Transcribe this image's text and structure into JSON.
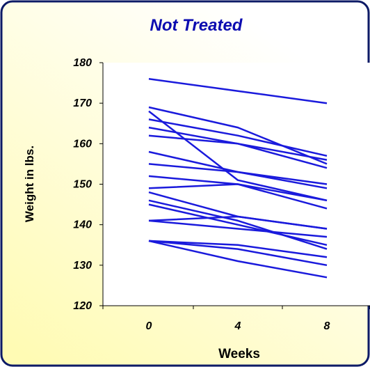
{
  "chart_data": {
    "type": "line",
    "title": "Not Treated",
    "xlabel": "Weeks",
    "ylabel": "Weight in lbs.",
    "x": [
      0,
      4,
      8
    ],
    "x_tick_labels": [
      "0",
      "4",
      "8"
    ],
    "y_tick_labels": [
      "120",
      "130",
      "140",
      "150",
      "160",
      "170",
      "180"
    ],
    "ylim": [
      120,
      180
    ],
    "grid": false,
    "legend": "none",
    "series": [
      {
        "values": [
          176,
          173,
          170
        ]
      },
      {
        "values": [
          169,
          164,
          155
        ]
      },
      {
        "values": [
          168,
          151,
          146
        ]
      },
      {
        "values": [
          166,
          162,
          157
        ]
      },
      {
        "values": [
          164,
          160,
          154
        ]
      },
      {
        "values": [
          162,
          160,
          156
        ]
      },
      {
        "values": [
          158,
          153,
          149
        ]
      },
      {
        "values": [
          155,
          153,
          150
        ]
      },
      {
        "values": [
          152,
          150,
          146
        ]
      },
      {
        "values": [
          149,
          150,
          144
        ]
      },
      {
        "values": [
          148,
          142,
          139
        ]
      },
      {
        "values": [
          146,
          141,
          134
        ]
      },
      {
        "values": [
          145,
          140,
          135
        ]
      },
      {
        "values": [
          141,
          142,
          139
        ]
      },
      {
        "values": [
          141,
          139,
          137
        ]
      },
      {
        "values": [
          136,
          135,
          132
        ]
      },
      {
        "values": [
          136,
          134,
          130
        ]
      },
      {
        "values": [
          136,
          131,
          127
        ]
      }
    ]
  },
  "colors": {
    "line": "#1a1adc",
    "title": "#0b0bb0",
    "text": "#000000",
    "frame_border": "#0c1a66",
    "gradient_top": "#ffffff",
    "gradient_bottom": "#fffbb4"
  }
}
